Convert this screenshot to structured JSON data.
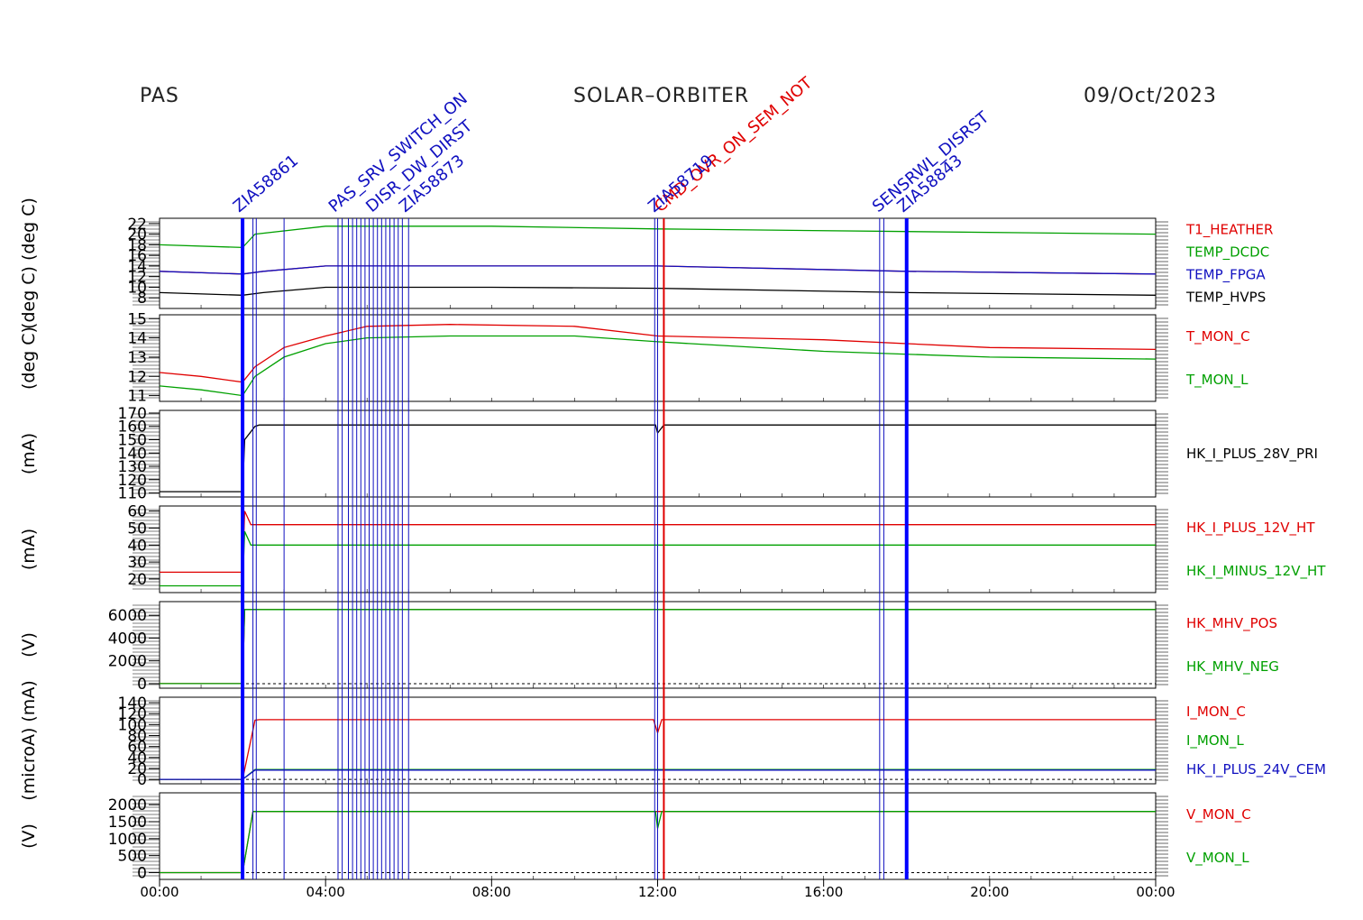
{
  "header": {
    "left": "PAS",
    "center": "SOLAR–ORBITER",
    "right": "09/Oct/2023"
  },
  "colors": {
    "red": "#e00000",
    "green": "#00a000",
    "blue": "#1010c0",
    "black": "#000000",
    "marker_blue": "#0000ff"
  },
  "chart_data": {
    "type": "line",
    "x_unit": "hours",
    "x_ticks": [
      "00:00",
      "04:00",
      "08:00",
      "12:00",
      "16:00",
      "20:00",
      "00:00"
    ],
    "xlim": [
      0,
      24
    ],
    "event_markers": {
      "thick": [
        2.0,
        18.0
      ],
      "thin": [
        2.25,
        2.33,
        3.0,
        4.3,
        4.4,
        4.55,
        4.65,
        4.75,
        4.85,
        4.95,
        5.05,
        5.15,
        5.25,
        5.35,
        5.45,
        5.55,
        5.65,
        5.75,
        5.85,
        6.0,
        11.93,
        12.0,
        17.35,
        17.45
      ],
      "red": [
        12.15
      ],
      "labels": [
        {
          "text": "ZIA58861",
          "at": 2.0,
          "color": "blue"
        },
        {
          "text": "PAS_SRV_SWITCH_ON",
          "at": 4.3,
          "color": "blue"
        },
        {
          "text": "DISR_DW_DIRST",
          "at": 5.2,
          "color": "blue"
        },
        {
          "text": "ZIA58873",
          "at": 6.0,
          "color": "blue"
        },
        {
          "text": "CMD_OVR_ON_SEM_NOT",
          "at": 12.15,
          "color": "red"
        },
        {
          "text": "ZIA58719",
          "at": 12.0,
          "color": "blue"
        },
        {
          "text": "SENSRWL_DISRST",
          "at": 17.4,
          "color": "blue"
        },
        {
          "text": "ZIA58843",
          "at": 18.0,
          "color": "blue"
        }
      ]
    },
    "panels": [
      {
        "ylabel": "(deg C) (deg C)",
        "yticks": [
          "22",
          "20",
          "18",
          "16",
          "14",
          "12",
          "10",
          "8"
        ],
        "ylim": [
          6,
          23
        ],
        "series": [
          {
            "name": "T1_HEATHER",
            "color": "red",
            "x": [
              0,
              2,
              2.5,
              4,
              8,
              12,
              18,
              24
            ],
            "y": [
              13,
              12.5,
              13,
              14,
              14,
              14,
              13,
              12.5
            ]
          },
          {
            "name": "TEMP_DCDC",
            "color": "green",
            "x": [
              0,
              2,
              2.3,
              4,
              8,
              12,
              18,
              24
            ],
            "y": [
              18,
              17.5,
              20,
              21.5,
              21.5,
              21,
              20.5,
              20
            ]
          },
          {
            "name": "TEMP_FPGA",
            "color": "blue",
            "x": [
              0,
              2,
              2.5,
              4,
              8,
              12,
              18,
              24
            ],
            "y": [
              13,
              12.5,
              13,
              14,
              14,
              14,
              13,
              12.5
            ]
          },
          {
            "name": "TEMP_HVPS",
            "color": "black",
            "x": [
              0,
              2,
              2.5,
              4,
              8,
              12,
              18,
              24
            ],
            "y": [
              9,
              8.5,
              9,
              10,
              10,
              9.8,
              9,
              8.5
            ]
          }
        ]
      },
      {
        "ylabel": "(deg C)",
        "yticks": [
          "15",
          "14",
          "13",
          "12",
          "11"
        ],
        "ylim": [
          10.7,
          15.2
        ],
        "series": [
          {
            "name": "T_MON_C",
            "color": "red",
            "x": [
              0,
              1,
              2,
              2.3,
              3,
              4,
              5,
              7,
              10,
              12,
              16,
              20,
              24
            ],
            "y": [
              12.2,
              12.0,
              11.7,
              12.5,
              13.5,
              14.1,
              14.6,
              14.7,
              14.6,
              14.1,
              13.9,
              13.5,
              13.4
            ]
          },
          {
            "name": "T_MON_L",
            "color": "green",
            "x": [
              0,
              1,
              2,
              2.3,
              3,
              4,
              5,
              7,
              10,
              12,
              16,
              20,
              24
            ],
            "y": [
              11.5,
              11.3,
              11.0,
              12.0,
              13.0,
              13.7,
              14.0,
              14.1,
              14.1,
              13.8,
              13.3,
              13.0,
              12.9
            ]
          }
        ]
      },
      {
        "ylabel": "(mA)",
        "yticks": [
          "170",
          "160",
          "150",
          "140",
          "130",
          "120",
          "110"
        ],
        "ylim": [
          107,
          172
        ],
        "series": [
          {
            "name": "HK_I_PLUS_28V_PRI",
            "color": "black",
            "x": [
              0,
              2,
              2.05,
              2.3,
              2.4,
              11.95,
              12.0,
              12.15,
              24
            ],
            "y": [
              111,
              111,
              150,
              160,
              161,
              161,
              155,
              161,
              161
            ]
          }
        ]
      },
      {
        "ylabel": "(mA)",
        "yticks": [
          "60",
          "50",
          "40",
          "30",
          "20"
        ],
        "ylim": [
          12,
          63
        ],
        "series": [
          {
            "name": "HK_I_PLUS_12V_HT",
            "color": "red",
            "x": [
              0,
              2,
              2.05,
              2.2,
              3,
              24
            ],
            "y": [
              24,
              24,
              60,
              52,
              52,
              52
            ]
          },
          {
            "name": "HK_I_MINUS_12V_HT",
            "color": "green",
            "x": [
              0,
              2,
              2.05,
              2.2,
              3,
              24
            ],
            "y": [
              16,
              16,
              48,
              40,
              40,
              40
            ]
          }
        ]
      },
      {
        "ylabel": "(V)",
        "yticks": [
          "6000",
          "4000",
          "2000",
          "0"
        ],
        "ylim": [
          -400,
          7200
        ],
        "series": [
          {
            "name": "HK_MHV_POS",
            "color": "red",
            "x": [
              0,
              2,
              2.05,
              24
            ],
            "y": [
              0,
              0,
              6500,
              6500
            ]
          },
          {
            "name": "HK_MHV_NEG",
            "color": "green",
            "x": [
              0,
              2,
              2.05,
              24
            ],
            "y": [
              0,
              0,
              6500,
              6500
            ]
          }
        ]
      },
      {
        "ylabel": "(microA) (mA)",
        "yticks": [
          "140",
          "120",
          "100",
          "80",
          "60",
          "40",
          "20",
          "0"
        ],
        "ylim": [
          -8,
          150
        ],
        "series": [
          {
            "name": "I_MON_C",
            "color": "red",
            "x": [
              0,
              2,
              2.3,
              2.4,
              11.9,
              12.0,
              12.1,
              24
            ],
            "y": [
              0,
              0,
              108,
              109,
              109,
              85,
              109,
              109
            ]
          },
          {
            "name": "I_MON_L",
            "color": "green",
            "x": [
              0,
              2,
              2.3,
              24
            ],
            "y": [
              0,
              0,
              18,
              18
            ]
          },
          {
            "name": "HK_I_PLUS_24V_CEM",
            "color": "blue",
            "x": [
              0,
              2,
              2.3,
              24
            ],
            "y": [
              0,
              0,
              17,
              17
            ]
          }
        ]
      },
      {
        "ylabel": "(V)",
        "yticks": [
          "2000",
          "1500",
          "1000",
          "500",
          "0"
        ],
        "ylim": [
          -200,
          2350
        ],
        "series": [
          {
            "name": "V_MON_C",
            "color": "red",
            "x": [
              0,
              2,
              2.25,
              24
            ],
            "y": [
              0,
              0,
              1800,
              1800
            ]
          },
          {
            "name": "V_MON_L",
            "color": "green",
            "x": [
              0,
              2,
              2.25,
              11.95,
              12.0,
              12.1,
              24
            ],
            "y": [
              0,
              0,
              1800,
              1800,
              1300,
              1800,
              1800
            ]
          }
        ]
      }
    ]
  }
}
